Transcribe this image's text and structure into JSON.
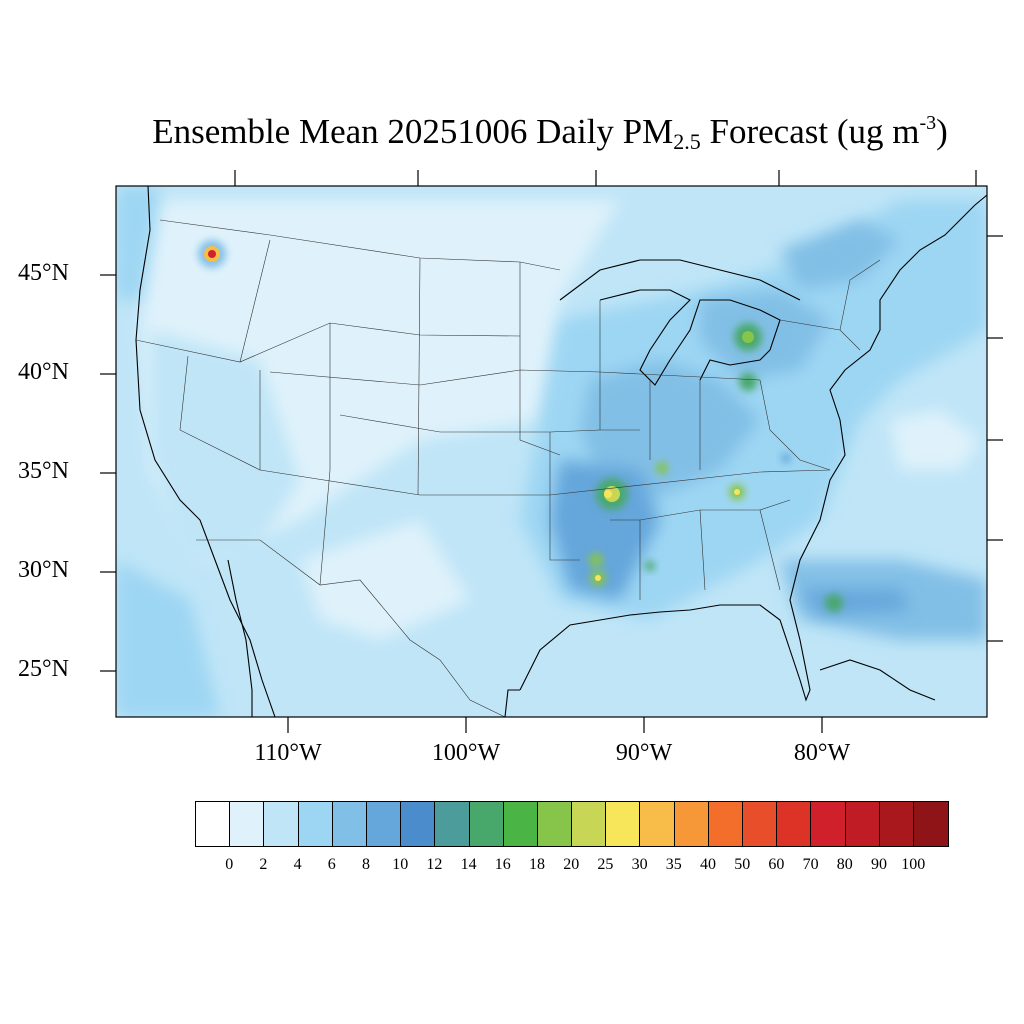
{
  "title": {
    "main": "Ensemble Mean 20251006 Daily PM",
    "sub": "2.5",
    "after_sub": " Forecast (ug m",
    "sup": "-3",
    "close": ")"
  },
  "lat_labels": [
    "45°N",
    "40°N",
    "35°N",
    "30°N",
    "25°N"
  ],
  "lon_labels": [
    "110°W",
    "100°W",
    "90°W",
    "80°W"
  ],
  "colorbar": {
    "levels": [
      "0",
      "2",
      "4",
      "6",
      "8",
      "10",
      "12",
      "14",
      "16",
      "18",
      "20",
      "25",
      "30",
      "35",
      "40",
      "50",
      "60",
      "70",
      "80",
      "90",
      "100"
    ],
    "colors": [
      "#ffffff",
      "#dff2fb",
      "#bfe5f7",
      "#9dd6f3",
      "#82bfe6",
      "#65a6db",
      "#4b8ccc",
      "#4c9c9c",
      "#48a86c",
      "#4ab444",
      "#86c44a",
      "#c8d656",
      "#f8e65a",
      "#f8bd48",
      "#f79838",
      "#f26e2a",
      "#e84e2a",
      "#dd3226",
      "#d0202c",
      "#bf1c26",
      "#a8181c",
      "#8e1418"
    ]
  },
  "map": {
    "background_color": "#bfe5f7",
    "hotspot_colors": {
      "low": "#82bfe6",
      "mid": "#4b8ccc",
      "green": "#4ab444",
      "yellow": "#f8e65a",
      "red": "#d0202c"
    }
  }
}
